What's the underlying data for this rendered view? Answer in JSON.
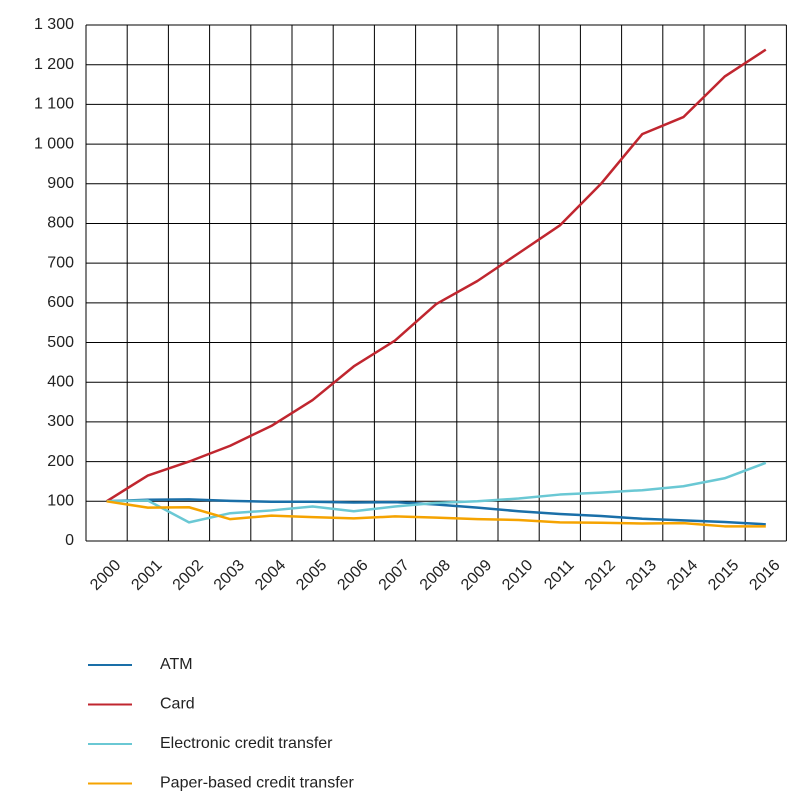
{
  "chart_data": {
    "type": "line",
    "categories": [
      "2000",
      "2001",
      "2002",
      "2003",
      "2004",
      "2005",
      "2006",
      "2007",
      "2008",
      "2009",
      "2010",
      "2011",
      "2012",
      "2013",
      "2014",
      "2015",
      "2016"
    ],
    "series": [
      {
        "name": "ATM",
        "color": "#1a6fa8",
        "values": [
          100,
          104,
          105,
          101,
          99,
          99,
          97,
          98,
          92,
          84,
          75,
          68,
          63,
          56,
          52,
          48,
          42
        ]
      },
      {
        "name": "Card",
        "color": "#c0262f",
        "values": [
          100,
          165,
          200,
          240,
          290,
          355,
          440,
          505,
          597,
          655,
          725,
          795,
          900,
          1025,
          1068,
          1170,
          1238
        ]
      },
      {
        "name": "Electronic credit transfer",
        "color": "#6ac8d4",
        "values": [
          100,
          102,
          47,
          70,
          77,
          87,
          75,
          87,
          96,
          100,
          107,
          117,
          122,
          128,
          138,
          158,
          197
        ]
      },
      {
        "name": "Paper-based credit transfer",
        "color": "#f5a300",
        "values": [
          100,
          84,
          85,
          55,
          64,
          60,
          57,
          62,
          59,
          55,
          53,
          47,
          46,
          44,
          45,
          37,
          37
        ]
      }
    ],
    "ylim": [
      0,
      1300
    ],
    "yticks": [
      0,
      100,
      200,
      300,
      400,
      500,
      600,
      700,
      800,
      900,
      {
        "value": 1000,
        "label": "1 000"
      },
      {
        "value": 1100,
        "label": "1 100"
      },
      {
        "value": 1200,
        "label": "1 200"
      },
      {
        "value": 1300,
        "label": "1 300"
      }
    ],
    "grid": true,
    "legend": "bottom"
  }
}
